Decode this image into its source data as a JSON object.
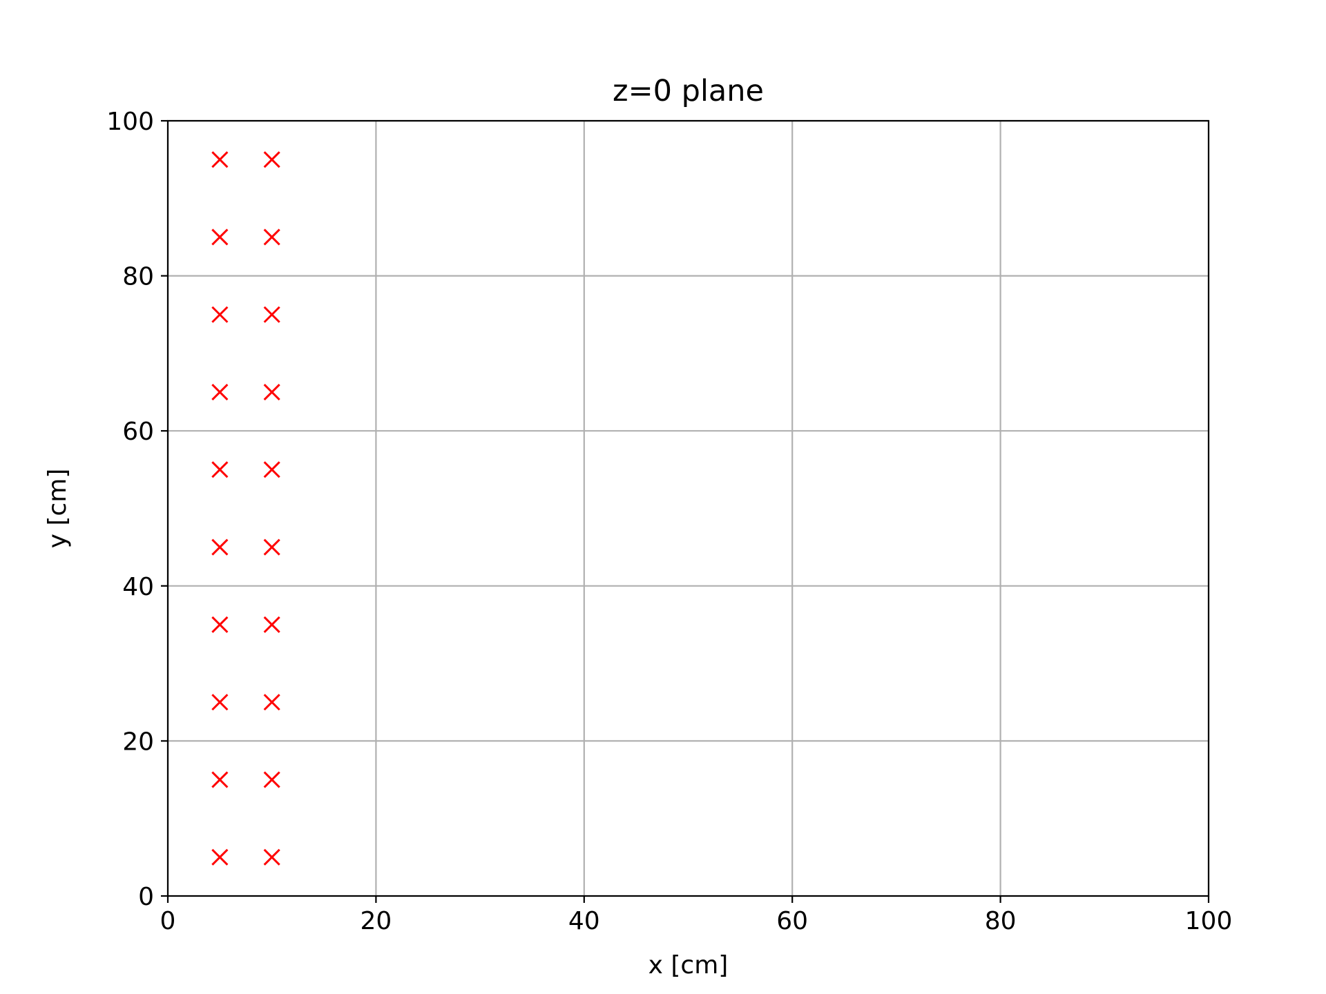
{
  "chart_data": {
    "type": "scatter",
    "title": "z=0 plane",
    "xlabel": "x [cm]",
    "ylabel": "y [cm]",
    "xlim": [
      0,
      100
    ],
    "ylim": [
      0,
      100
    ],
    "xticks": [
      0,
      20,
      40,
      60,
      80,
      100
    ],
    "yticks": [
      0,
      20,
      40,
      60,
      80,
      100
    ],
    "xtick_labels": [
      "0",
      "20",
      "40",
      "60",
      "80",
      "100"
    ],
    "ytick_labels": [
      "0",
      "20",
      "40",
      "60",
      "80",
      "100"
    ],
    "grid": true,
    "marker": "x",
    "marker_color": "#ff0000",
    "grid_color": "#b0b0b0",
    "series": [
      {
        "points": [
          {
            "x": 5,
            "y": 5
          },
          {
            "x": 10,
            "y": 5
          },
          {
            "x": 5,
            "y": 15
          },
          {
            "x": 10,
            "y": 15
          },
          {
            "x": 5,
            "y": 25
          },
          {
            "x": 10,
            "y": 25
          },
          {
            "x": 5,
            "y": 35
          },
          {
            "x": 10,
            "y": 35
          },
          {
            "x": 5,
            "y": 45
          },
          {
            "x": 10,
            "y": 45
          },
          {
            "x": 5,
            "y": 55
          },
          {
            "x": 10,
            "y": 55
          },
          {
            "x": 5,
            "y": 65
          },
          {
            "x": 10,
            "y": 65
          },
          {
            "x": 5,
            "y": 75
          },
          {
            "x": 10,
            "y": 75
          },
          {
            "x": 5,
            "y": 85
          },
          {
            "x": 10,
            "y": 85
          },
          {
            "x": 5,
            "y": 95
          },
          {
            "x": 10,
            "y": 95
          }
        ]
      }
    ]
  }
}
